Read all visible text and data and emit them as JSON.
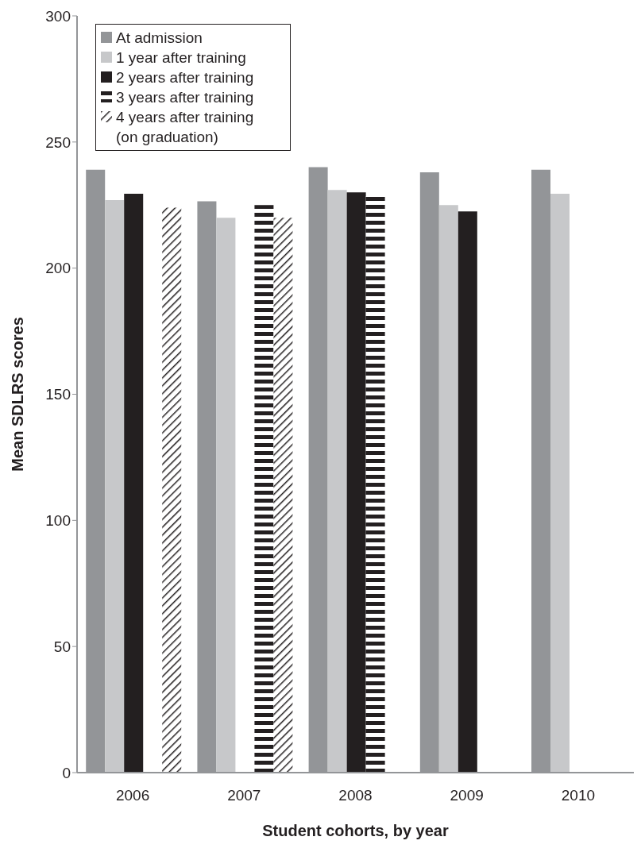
{
  "chart_data": {
    "type": "bar",
    "xlabel": "Student cohorts, by year",
    "ylabel": "Mean SDLRS scores",
    "categories": [
      "2006",
      "2007",
      "2008",
      "2009",
      "2010"
    ],
    "series": [
      {
        "name": "At admission",
        "color": "#939598",
        "values": [
          239,
          226.5,
          240,
          238,
          239
        ]
      },
      {
        "name": "1 year after training",
        "color": "#c7c8ca",
        "values": [
          227,
          220,
          231,
          225,
          229.5
        ]
      },
      {
        "name": "2 years after training",
        "color": "#231f20",
        "values": [
          229.5,
          null,
          230,
          222.5,
          null
        ]
      },
      {
        "name": "3 years after training",
        "color": "#231f20",
        "values": [
          null,
          225,
          228.5,
          null,
          null
        ]
      },
      {
        "name": "4 years after training (on graduation)",
        "color": "#231f20",
        "values": [
          224,
          220,
          null,
          null,
          null
        ]
      }
    ],
    "ylim": [
      0,
      300
    ],
    "yticks": [
      0,
      50,
      100,
      150,
      200,
      250,
      300
    ],
    "grid": false,
    "legend": "top left"
  }
}
